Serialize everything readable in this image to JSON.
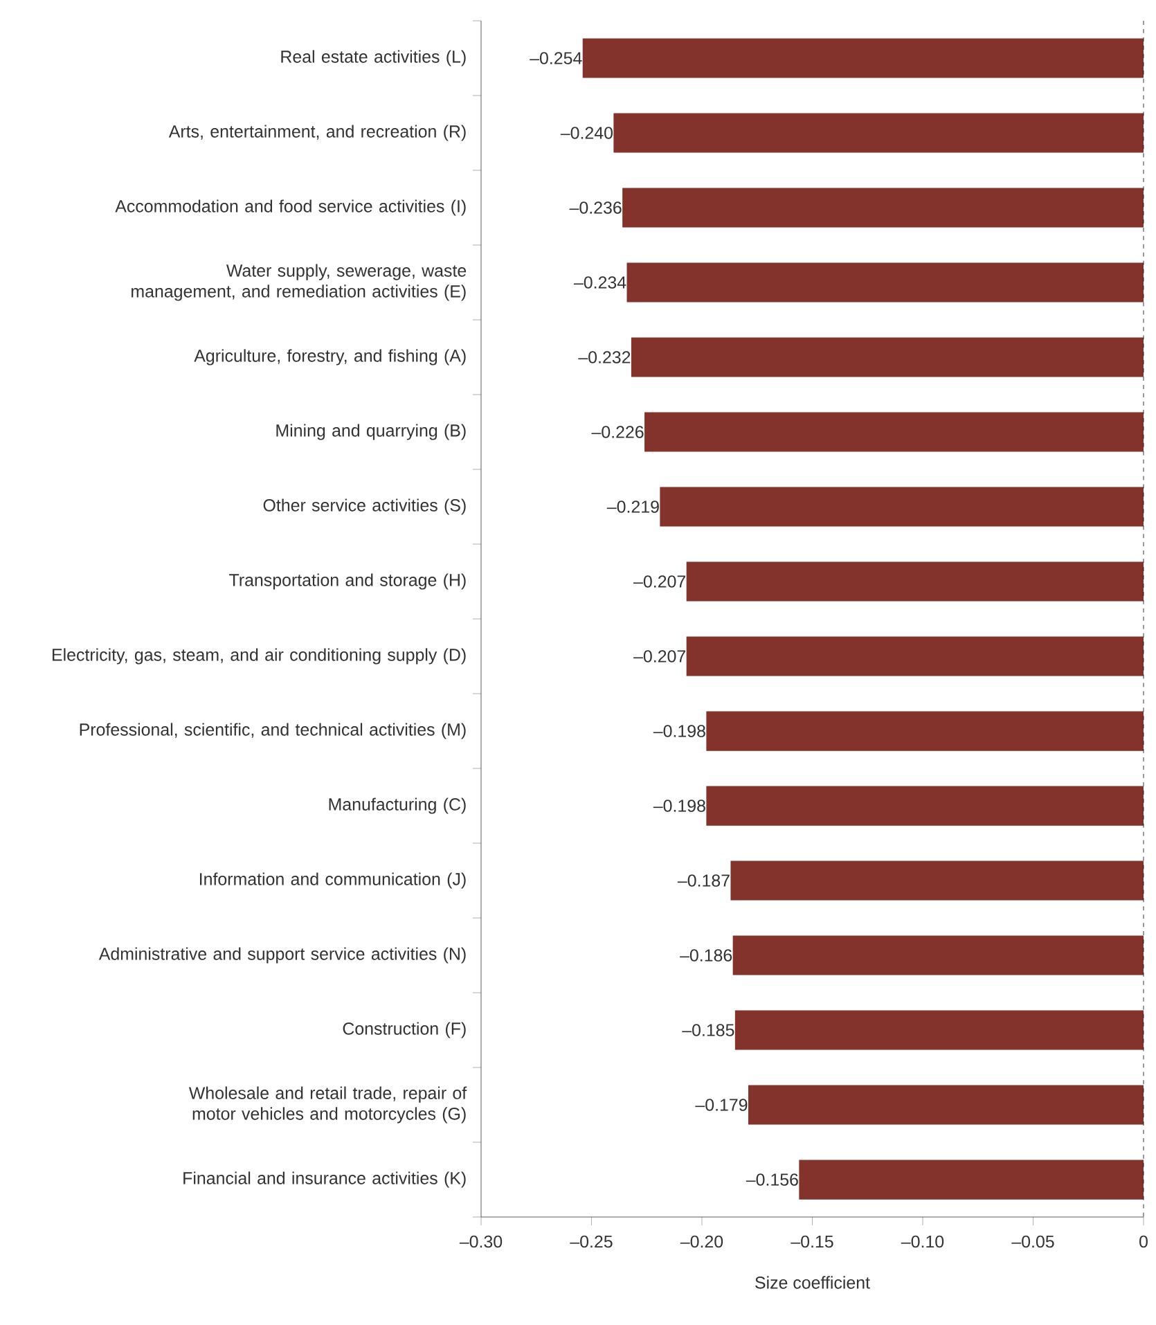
{
  "chart_data": {
    "type": "bar",
    "orientation": "horizontal",
    "xlabel": "Size coefficient",
    "categories": [
      "Real estate activities (L)",
      "Arts, entertainment, and recreation (R)",
      "Accommodation and food service activities (I)",
      "Water supply, sewerage, waste management, and remediation activities (E)",
      "Agriculture, forestry, and fishing (A)",
      "Mining and quarrying (B)",
      "Other service activities (S)",
      "Transportation and storage (H)",
      "Electricity, gas, steam, and air conditioning supply (D)",
      "Professional, scientific, and technical activities (M)",
      "Manufacturing (C)",
      "Information and communication (J)",
      "Administrative and support service activities (N)",
      "Construction (F)",
      "Wholesale and retail trade, repair of motor vehicles and motorcycles (G)",
      "Financial and insurance activities (K)"
    ],
    "values": [
      -0.254,
      -0.24,
      -0.236,
      -0.234,
      -0.232,
      -0.226,
      -0.219,
      -0.207,
      -0.207,
      -0.198,
      -0.198,
      -0.187,
      -0.186,
      -0.185,
      -0.179,
      -0.156
    ],
    "value_labels": [
      "–0.254",
      "–0.240",
      "–0.236",
      "–0.234",
      "–0.232",
      "–0.226",
      "–0.219",
      "–0.207",
      "–0.207",
      "–0.198",
      "–0.198",
      "–0.187",
      "–0.186",
      "–0.185",
      "–0.179",
      "–0.156"
    ],
    "color": "#83332b",
    "xlim": [
      -0.3,
      0
    ],
    "xticks": [
      {
        "value": -0.3,
        "label": "–0.30"
      },
      {
        "value": -0.25,
        "label": "–0.25"
      },
      {
        "value": -0.2,
        "label": "–0.20"
      },
      {
        "value": -0.15,
        "label": "–0.15"
      },
      {
        "value": -0.1,
        "label": "–0.10"
      },
      {
        "value": -0.05,
        "label": "–0.05"
      },
      0
    ],
    "ref_lines": [
      {
        "axis": "x",
        "value": 0,
        "line_style": "dashed"
      }
    ]
  }
}
